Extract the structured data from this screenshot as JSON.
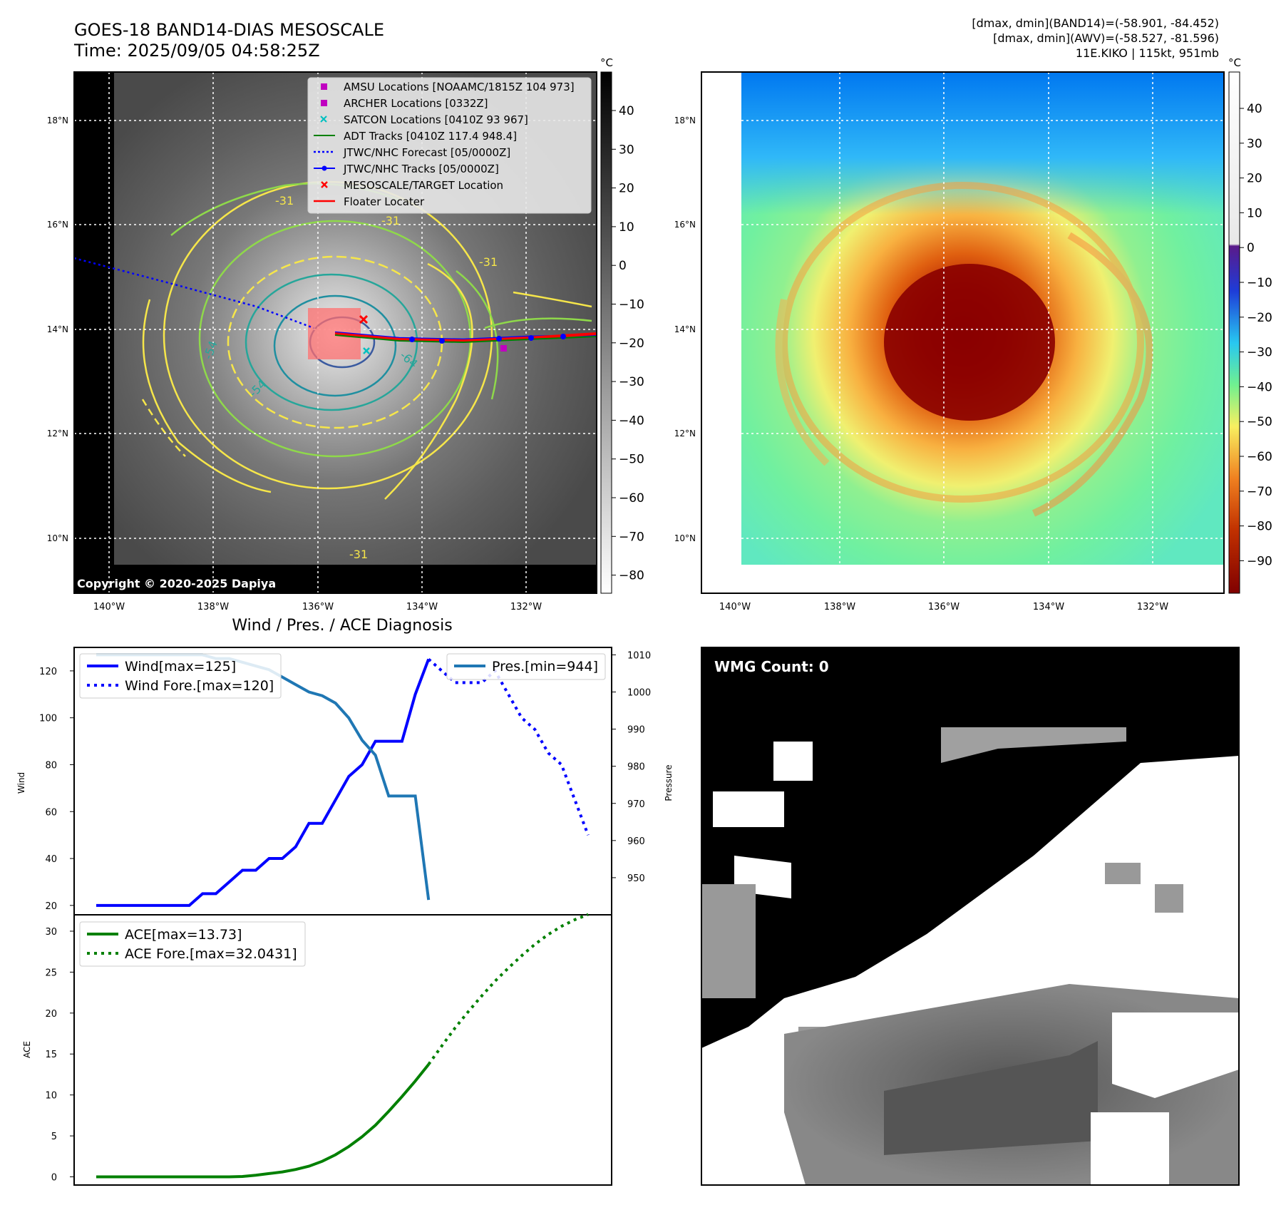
{
  "header": {
    "title": "GOES-18 BAND14-DIAS MESOSCALE",
    "time": "Time: 2025/09/05 04:58:25Z",
    "dmax_band14": "[dmax, dmin](BAND14)=(-58.901, -84.452)",
    "dmax_awv": "[dmax, dmin](AWV)=(-58.527, -81.596)",
    "storm": "11E.KIKO | 115kt, 951mb"
  },
  "colors": {
    "wind": "#0000ff",
    "pressure": "#1f77b4",
    "ace": "#008000",
    "track_red": "#ff0000",
    "amsu": "#c000c0",
    "satcon": "#00c0c0"
  },
  "map": {
    "lat_labels": [
      "18°N",
      "16°N",
      "14°N",
      "12°N",
      "10°N"
    ],
    "lon_labels": [
      "140°W",
      "138°W",
      "136°W",
      "134°W",
      "132°W"
    ],
    "copyright": "Copyright © 2020-2025 Dapiya",
    "unit": "°C",
    "gray_colorbar_ticks": [
      "40",
      "30",
      "20",
      "10",
      "0",
      "−10",
      "−20",
      "−30",
      "−40",
      "−50",
      "−60",
      "−70",
      "−80"
    ],
    "color_colorbar_ticks": [
      "40",
      "30",
      "20",
      "10",
      "0",
      "−10",
      "−20",
      "−30",
      "−40",
      "−50",
      "−60",
      "−70",
      "−80",
      "−90"
    ],
    "contour_labels": [
      "-31",
      "-31",
      "-31",
      "-54",
      "-54",
      "-64",
      "-31"
    ],
    "legend": [
      {
        "label": "AMSU Locations [NOAAMC/1815Z 104 973]",
        "icon": "magenta-square-marker"
      },
      {
        "label": "ARCHER Locations [0332Z]",
        "icon": "magenta-square-marker"
      },
      {
        "label": "SATCON Locations [0410Z 93 967]",
        "icon": "cyan-x-marker"
      },
      {
        "label": "ADT Tracks [0410Z 117.4 948.4]",
        "icon": "green-line"
      },
      {
        "label": "JTWC/NHC Forecast [05/0000Z]",
        "icon": "blue-dotted-line"
      },
      {
        "label": "JTWC/NHC Tracks [05/0000Z]",
        "icon": "blue-line-dot-marker"
      },
      {
        "label": "MESOSCALE/TARGET Location",
        "icon": "red-x-marker"
      },
      {
        "label": "Floater Locater",
        "icon": "red-line"
      }
    ]
  },
  "wmg": {
    "label": "WMG Count: 0"
  },
  "chart_data": [
    {
      "type": "line",
      "title": "Wind / Pres. / ACE Diagnosis",
      "ylabel": "Wind",
      "ylabel_right": "Pressure",
      "ylim": [
        16,
        130
      ],
      "ylim_right": [
        940,
        1012
      ],
      "yticks": [
        20,
        40,
        60,
        80,
        100,
        120
      ],
      "yticks_right": [
        950,
        960,
        970,
        980,
        990,
        1000,
        1010
      ],
      "x_range": [
        0,
        37
      ],
      "series": [
        {
          "name": "Wind[max=125]",
          "style": "solid",
          "axis": "left",
          "x": [
            0,
            1,
            2,
            3,
            4,
            5,
            6,
            7,
            8,
            9,
            10,
            11,
            12,
            13,
            14,
            15,
            16,
            17,
            18,
            19,
            20,
            21,
            22,
            23,
            24,
            25
          ],
          "values": [
            20,
            20,
            20,
            20,
            20,
            20,
            20,
            20,
            25,
            25,
            30,
            35,
            35,
            40,
            40,
            45,
            55,
            55,
            65,
            75,
            80,
            90,
            90,
            90,
            110,
            125
          ]
        },
        {
          "name": "Wind Fore.[max=120]",
          "style": "dotted",
          "axis": "left",
          "x": [
            25,
            26,
            27,
            28,
            29,
            30,
            31,
            32,
            33,
            34,
            35,
            36,
            37
          ],
          "values": [
            125,
            120,
            115,
            115,
            115,
            120,
            110,
            100,
            95,
            85,
            80,
            65,
            50
          ]
        },
        {
          "name": "Pres.[min=944]",
          "style": "solid",
          "axis": "right",
          "x": [
            0,
            1,
            2,
            3,
            4,
            5,
            6,
            7,
            8,
            9,
            10,
            11,
            12,
            13,
            14,
            15,
            16,
            17,
            18,
            19,
            20,
            21,
            22,
            23,
            24,
            25
          ],
          "values": [
            1010,
            1010,
            1010,
            1010,
            1010,
            1010,
            1010,
            1010,
            1010,
            1009,
            1009,
            1008,
            1007,
            1006,
            1004,
            1002,
            1000,
            999,
            997,
            993,
            987,
            983,
            972,
            972,
            972,
            944
          ]
        }
      ]
    },
    {
      "type": "line",
      "ylabel": "ACE",
      "ylim": [
        -1,
        32
      ],
      "yticks": [
        0,
        5,
        10,
        15,
        20,
        25,
        30
      ],
      "x_range": [
        0,
        37
      ],
      "series": [
        {
          "name": "ACE[max=13.73]",
          "style": "solid",
          "x": [
            0,
            2,
            4,
            6,
            8,
            10,
            11,
            12,
            13,
            14,
            15,
            16,
            17,
            18,
            19,
            20,
            21,
            22,
            23,
            24,
            25
          ],
          "values": [
            0,
            0,
            0,
            0,
            0,
            0,
            0.05,
            0.2,
            0.4,
            0.6,
            0.9,
            1.3,
            1.9,
            2.7,
            3.7,
            4.9,
            6.3,
            8.0,
            9.8,
            11.7,
            13.73
          ]
        },
        {
          "name": "ACE Fore.[max=32.0431]",
          "style": "dotted",
          "x": [
            25,
            26,
            27,
            28,
            29,
            30,
            31,
            32,
            33,
            34,
            35,
            36,
            37
          ],
          "values": [
            13.73,
            16.0,
            18.2,
            20.2,
            22.1,
            23.9,
            25.5,
            27.0,
            28.4,
            29.6,
            30.6,
            31.4,
            32.04
          ]
        }
      ]
    }
  ]
}
